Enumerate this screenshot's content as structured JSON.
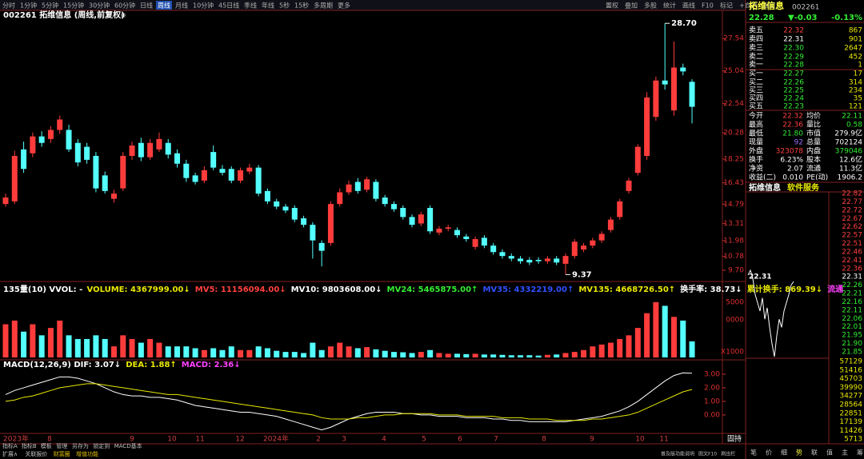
{
  "toolbar": {
    "periods": [
      "分时",
      "1分钟",
      "5分钟",
      "15分钟",
      "30分钟",
      "60分钟",
      "日线",
      "周线",
      "月线",
      "10分钟",
      "45日线",
      "季线",
      "年线",
      "5秒",
      "15秒",
      "多周期",
      "更多"
    ],
    "selected": "周线",
    "tools": [
      "置权",
      "叠加",
      "多股",
      "统计",
      "画线",
      "F10",
      "标记",
      "+自选",
      "返回"
    ]
  },
  "main": {
    "title": "002261 拓维信息 (周线,前复权)",
    "ylim": [
      9.27,
      28.65
    ],
    "yticks": [
      27.54,
      25.04,
      22.54,
      20.28,
      18.25,
      16.43,
      14.79,
      13.31,
      11.98,
      10.78,
      {
        "value": 9.7,
        "label": "9.70"
      }
    ],
    "high_label": "28.70",
    "low_label": "9.37",
    "up_color": "#ff3c3c",
    "down_color": "#54ffff",
    "candles": [
      [
        14.8,
        15.6,
        14.6,
        15.3
      ],
      [
        15.0,
        18.9,
        14.8,
        18.5
      ],
      [
        19.0,
        19.6,
        17.2,
        17.5
      ],
      [
        18.7,
        20.3,
        18.4,
        20.0
      ],
      [
        20.0,
        20.4,
        19.2,
        19.5
      ],
      [
        19.8,
        20.8,
        19.5,
        20.5
      ],
      [
        20.5,
        21.6,
        20.2,
        21.3
      ],
      [
        20.5,
        20.9,
        18.8,
        19.0
      ],
      [
        19.5,
        19.8,
        17.7,
        18.0
      ],
      [
        19.2,
        19.5,
        17.9,
        18.2
      ],
      [
        18.5,
        18.8,
        15.7,
        16.0
      ],
      [
        17.0,
        17.3,
        15.6,
        15.8
      ],
      [
        15.2,
        15.9,
        14.9,
        15.6
      ],
      [
        16.0,
        18.8,
        15.8,
        18.5
      ],
      [
        18.5,
        19.6,
        18.2,
        19.3
      ],
      [
        19.5,
        19.9,
        18.1,
        18.4
      ],
      [
        18.4,
        19.8,
        18.2,
        19.5
      ],
      [
        19.0,
        20.3,
        18.8,
        19.8
      ],
      [
        19.5,
        19.8,
        18.3,
        18.6
      ],
      [
        18.7,
        19.0,
        17.6,
        17.9
      ],
      [
        17.9,
        18.2,
        16.5,
        16.8
      ],
      [
        17.0,
        17.2,
        16.3,
        16.5
      ],
      [
        16.6,
        17.7,
        16.4,
        17.4
      ],
      [
        18.8,
        19.3,
        17.4,
        17.6
      ],
      [
        17.5,
        17.8,
        17.0,
        17.2
      ],
      [
        17.5,
        17.7,
        16.4,
        16.6
      ],
      [
        16.6,
        17.6,
        16.4,
        17.4
      ],
      [
        17.3,
        17.9,
        17.1,
        17.6
      ],
      [
        17.6,
        17.8,
        15.4,
        15.6
      ],
      [
        15.8,
        16.0,
        14.8,
        15.0
      ],
      [
        15.0,
        15.2,
        14.4,
        14.6
      ],
      [
        14.6,
        14.8,
        14.1,
        14.3
      ],
      [
        14.5,
        14.7,
        13.4,
        13.6
      ],
      [
        13.7,
        13.9,
        13.0,
        13.2
      ],
      [
        13.2,
        13.4,
        10.6,
        12.0
      ],
      [
        11.8,
        12.0,
        10.0,
        11.2
      ],
      [
        11.8,
        15.0,
        11.6,
        14.8
      ],
      [
        14.8,
        16.0,
        14.6,
        15.7
      ],
      [
        15.7,
        16.6,
        15.5,
        16.3
      ],
      [
        16.5,
        16.8,
        15.6,
        15.8
      ],
      [
        15.9,
        16.9,
        15.7,
        16.7
      ],
      [
        16.5,
        16.7,
        15.0,
        15.2
      ],
      [
        15.3,
        15.5,
        14.6,
        14.8
      ],
      [
        14.8,
        15.0,
        14.2,
        14.4
      ],
      [
        14.5,
        14.7,
        13.6,
        13.8
      ],
      [
        13.8,
        14.0,
        13.0,
        13.2
      ],
      [
        13.3,
        14.2,
        13.1,
        14.0
      ],
      [
        14.5,
        14.7,
        12.5,
        12.7
      ],
      [
        12.6,
        13.1,
        12.4,
        12.9
      ],
      [
        12.9,
        13.2,
        12.7,
        13.0
      ],
      [
        12.8,
        13.0,
        12.2,
        12.4
      ],
      [
        12.3,
        12.5,
        11.9,
        12.1
      ],
      [
        11.5,
        12.3,
        11.3,
        12.1
      ],
      [
        12.2,
        12.4,
        11.4,
        11.6
      ],
      [
        11.6,
        11.8,
        10.9,
        11.1
      ],
      [
        11.1,
        11.3,
        10.6,
        10.8
      ],
      [
        10.8,
        11.0,
        10.4,
        10.6
      ],
      [
        10.6,
        10.8,
        10.2,
        10.4
      ],
      [
        10.5,
        10.7,
        10.1,
        10.3
      ],
      [
        10.5,
        10.7,
        10.2,
        10.4
      ],
      [
        10.4,
        10.8,
        10.2,
        10.6
      ],
      [
        10.6,
        10.8,
        10.1,
        10.3
      ],
      [
        10.2,
        11.0,
        9.37,
        10.8
      ],
      [
        10.8,
        12.1,
        10.6,
        11.9
      ],
      [
        11.3,
        11.8,
        11.1,
        11.6
      ],
      [
        11.6,
        12.2,
        11.4,
        12.0
      ],
      [
        12.0,
        12.7,
        11.8,
        12.5
      ],
      [
        12.8,
        13.8,
        12.6,
        13.6
      ],
      [
        13.8,
        15.2,
        13.6,
        15.0
      ],
      [
        15.8,
        16.8,
        15.6,
        16.6
      ],
      [
        17.2,
        19.4,
        17.0,
        19.2
      ],
      [
        18.5,
        23.4,
        18.2,
        23.0
      ],
      [
        21.5,
        24.6,
        21.2,
        24.3
      ],
      [
        24.3,
        28.7,
        23.6,
        24.0
      ],
      [
        22.0,
        27.3,
        21.6,
        25.3
      ],
      [
        25.3,
        25.6,
        24.7,
        25.0
      ],
      [
        24.2,
        24.4,
        21.0,
        22.28
      ]
    ],
    "date_labels": [
      "2023年",
      "8",
      "9",
      "10",
      "11",
      "12",
      "2024年",
      "2",
      "3",
      "4",
      "5",
      "6",
      "7",
      "8",
      "9",
      "10",
      "11"
    ],
    "corner_label": "固持"
  },
  "volume": {
    "indicator": [
      {
        "text": "135量(10) VVOL: -",
        "color": "#ffffff"
      },
      {
        "text": "VOLUME: 4367999.00↓",
        "color": "#e8e800"
      },
      {
        "text": "MV5: 11156094.00↓",
        "color": "#ff4040"
      },
      {
        "text": "MV10: 9803608.00↓",
        "color": "#ffffff"
      },
      {
        "text": "MV24: 5465875.00↑",
        "color": "#33ee33"
      },
      {
        "text": "MV35: 4332219.00↑",
        "color": "#3050ff"
      },
      {
        "text": "MV135: 4668726.50↑",
        "color": "#e8e800"
      },
      {
        "text": "换手率: 38.73↓",
        "color": "#ffffff"
      },
      {
        "text": "累计换手: 869.39↓",
        "color": "#e8e800"
      },
      {
        "text": "流通",
        "color": "#ff40ff"
      }
    ],
    "ylim": [
      0,
      16700000
    ],
    "values": [
      9000000,
      10000000,
      7000000,
      9000000,
      6000000,
      8000000,
      10000000,
      6000000,
      5000000,
      5000000,
      6000000,
      5000000,
      3000000,
      6000000,
      5000000,
      4000000,
      5000000,
      4000000,
      3000000,
      3000000,
      3000000,
      2500000,
      2000000,
      2500000,
      2000000,
      3000000,
      2000000,
      2000000,
      3000000,
      2500000,
      1800000,
      1500000,
      1500000,
      1200000,
      4000000,
      2000000,
      3000000,
      4000000,
      3000000,
      2500000,
      2800000,
      2200000,
      1800000,
      1500000,
      1400000,
      1200000,
      1500000,
      2000000,
      1200000,
      1000000,
      1000000,
      900000,
      1000000,
      800000,
      800000,
      700000,
      600000,
      600000,
      600000,
      500000,
      700000,
      800000,
      1200000,
      1500000,
      2000000,
      3000000,
      3500000,
      4000000,
      5000000,
      6000000,
      8000000,
      12000000,
      15000000,
      14000000,
      11000000,
      10000000,
      4367999
    ],
    "axis_labels": [
      "5000",
      "0000",
      "X1000"
    ]
  },
  "macd": {
    "header": [
      {
        "text": "MACD(12,26,9) DIF: 3.07↓",
        "color": "#ffffff"
      },
      {
        "text": "DEA: 1.88↑",
        "color": "#e8e800"
      },
      {
        "text": "MACD: 2.36↓",
        "color": "#ff40ff"
      }
    ],
    "ylim": [
      -1.24,
      3.76
    ],
    "yticks": [
      {
        "value": 3,
        "label": "3.00"
      },
      {
        "value": 2,
        "label": "2.00"
      },
      {
        "value": 1,
        "label": "1.00"
      },
      {
        "value": 0,
        "label": "0.00"
      }
    ],
    "dif_color": "#ffffff",
    "dea_color": "#e8e800",
    "dif": [
      1.5,
      1.8,
      2.0,
      2.2,
      2.4,
      2.6,
      2.8,
      2.8,
      2.7,
      2.5,
      2.3,
      2.0,
      1.7,
      1.5,
      1.4,
      1.4,
      1.3,
      1.3,
      1.2,
      1.1,
      0.9,
      0.7,
      0.6,
      0.5,
      0.4,
      0.3,
      0.2,
      0.2,
      0.1,
      0.0,
      -0.1,
      -0.3,
      -0.5,
      -0.7,
      -0.9,
      -1.1,
      -0.9,
      -0.6,
      -0.3,
      -0.1,
      0.1,
      0.2,
      0.2,
      0.2,
      0.1,
      0.1,
      0.0,
      0.0,
      -0.1,
      -0.1,
      -0.1,
      -0.2,
      -0.2,
      -0.2,
      -0.3,
      -0.3,
      -0.4,
      -0.4,
      -0.5,
      -0.5,
      -0.5,
      -0.5,
      -0.5,
      -0.4,
      -0.3,
      -0.2,
      -0.1,
      0.1,
      0.3,
      0.6,
      1.0,
      1.5,
      2.0,
      2.5,
      2.9,
      3.1,
      3.07
    ],
    "dea": [
      1.0,
      1.1,
      1.3,
      1.4,
      1.6,
      1.8,
      2.0,
      2.1,
      2.2,
      2.3,
      2.3,
      2.2,
      2.1,
      2.0,
      1.9,
      1.8,
      1.7,
      1.6,
      1.5,
      1.5,
      1.4,
      1.3,
      1.2,
      1.1,
      1.0,
      0.9,
      0.8,
      0.7,
      0.6,
      0.5,
      0.4,
      0.3,
      0.2,
      0.1,
      0.0,
      -0.2,
      -0.3,
      -0.3,
      -0.3,
      -0.2,
      -0.2,
      -0.1,
      0.0,
      0.0,
      0.1,
      0.1,
      0.1,
      0.1,
      0.0,
      0.0,
      0.0,
      -0.1,
      -0.1,
      -0.1,
      -0.1,
      -0.2,
      -0.2,
      -0.2,
      -0.3,
      -0.3,
      -0.3,
      -0.4,
      -0.4,
      -0.4,
      -0.4,
      -0.3,
      -0.3,
      -0.2,
      -0.1,
      0.0,
      0.2,
      0.5,
      0.8,
      1.1,
      1.4,
      1.7,
      1.88
    ]
  },
  "quote": {
    "name": "拓维信息",
    "code": "002261",
    "price": "22.28",
    "change": "▼-0.03",
    "pct": "-0.13%",
    "change_color": "#33ee33",
    "book": [
      {
        "label": "卖五",
        "price": "22.32",
        "volume": "867",
        "color": "#ff4040"
      },
      {
        "label": "卖四",
        "price": "22.31",
        "volume": "901",
        "color": "#ffffff"
      },
      {
        "label": "卖三",
        "price": "22.30",
        "volume": "2647",
        "color": "#33ee33"
      },
      {
        "label": "卖二",
        "price": "22.29",
        "volume": "452",
        "color": "#33ee33"
      },
      {
        "label": "卖一",
        "price": "22.28",
        "volume": "1",
        "color": "#33ee33"
      },
      {
        "label": "买一",
        "price": "22.27",
        "volume": "17",
        "color": "#33ee33"
      },
      {
        "label": "买二",
        "price": "22.26",
        "volume": "314",
        "color": "#33ee33"
      },
      {
        "label": "买三",
        "price": "22.25",
        "volume": "234",
        "color": "#33ee33"
      },
      {
        "label": "买四",
        "price": "22.24",
        "volume": "35",
        "color": "#33ee33"
      },
      {
        "label": "买五",
        "price": "22.23",
        "volume": "121",
        "color": "#33ee33"
      }
    ],
    "stats": [
      {
        "l1": "今开",
        "v1": "22.32",
        "c1": "#ff4040",
        "l2": "均价",
        "v2": "22.11",
        "c2": "#33ee33"
      },
      {
        "l1": "最高",
        "v1": "22.36",
        "c1": "#ff4040",
        "l2": "量比",
        "v2": "0.58",
        "c2": "#33ee33"
      },
      {
        "l1": "最低",
        "v1": "21.80",
        "c1": "#33ee33",
        "l2": "市值",
        "v2": "279.9亿",
        "c2": "#ffffff"
      },
      {
        "l1": "现量",
        "v1": "92",
        "c1": "#9a6cff",
        "l2": "总量",
        "v2": "702124",
        "c2": "#ffffff"
      },
      {
        "l1": "外盘",
        "v1": "323078",
        "c1": "#ff4040",
        "l2": "内盘",
        "v2": "379046",
        "c2": "#33ee33"
      },
      {
        "l1": "换手",
        "v1": "6.23%",
        "c1": "#ffffff",
        "l2": "股本",
        "v2": "12.6亿",
        "c2": "#ffffff"
      },
      {
        "l1": "净资",
        "v1": "2.07",
        "c1": "#ffffff",
        "l2": "流通",
        "v2": "11.3亿",
        "c2": "#ffffff"
      },
      {
        "l1": "收益(二)",
        "v1": "0.010",
        "c1": "#ffffff",
        "l2": "PE(动)",
        "v2": "1906.2",
        "c2": "#ffffff"
      }
    ],
    "industry": "软件服务"
  },
  "intraday": {
    "ref": "22.31",
    "ylim": [
      21.85,
      22.82
    ],
    "color": "#ffffff",
    "values": [
      22.32,
      22.35,
      22.3,
      22.2,
      22.15,
      22.1,
      22.18,
      22.05,
      22.12,
      22.0,
      21.9,
      21.82,
      21.95,
      22.05,
      22.0,
      22.1,
      22.15,
      22.2,
      22.26,
      22.28
    ],
    "price_labels": [
      "22.82",
      "22.77",
      "22.72",
      "22.67",
      "22.62",
      "22.57",
      "22.51",
      "22.46",
      "22.41",
      "22.36",
      "22.31",
      "22.26",
      "22.21",
      "22.16",
      "22.11",
      "22.06",
      "22.01",
      "21.95",
      "21.90",
      "21.85"
    ],
    "volume_labels": [
      "57129",
      "51416",
      "45703",
      "39990",
      "34277",
      "28564",
      "22851",
      "17139",
      "11426",
      "5713"
    ],
    "tabs": [
      "笔",
      "价",
      "细",
      "势",
      "联",
      "值",
      "主",
      "筹"
    ]
  },
  "status": {
    "indicator_tabs": [
      "指标A",
      "指标B",
      "模板",
      "管理",
      "另存为",
      "锁定到",
      "MACD基本"
    ],
    "bottom_tabs": [
      "扩展∧",
      "关联报价",
      "财富圈",
      "增值功能"
    ],
    "right_notes": [
      "普及版功能说明",
      "图文F10",
      "刷出栏"
    ]
  }
}
